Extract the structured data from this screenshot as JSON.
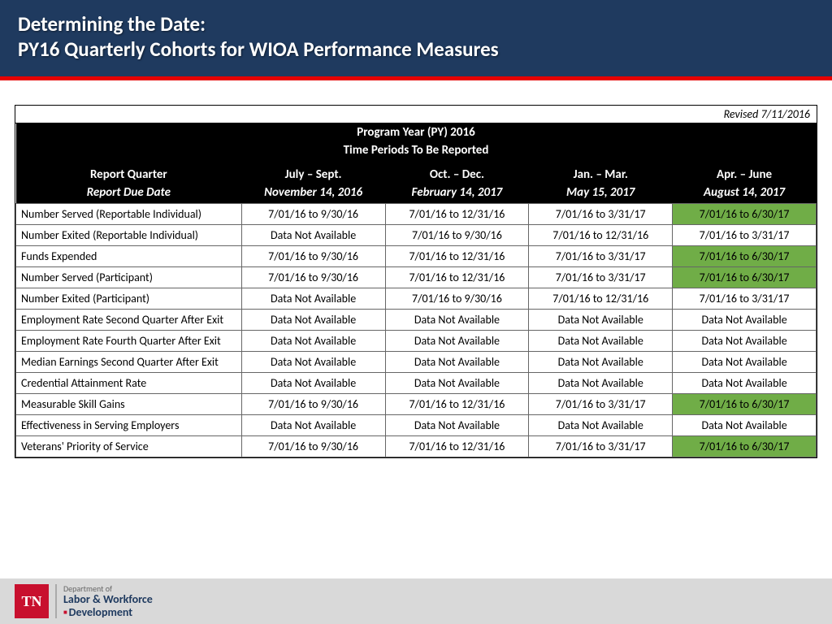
{
  "header": {
    "title1": "Determining the Date:",
    "title2": "PY16 Quarterly Cohorts for WIOA Performance Measures",
    "header_bg": "#1f3a5f",
    "red_bar_color": "#e60000"
  },
  "table": {
    "revised_label": "Revised 7/11/2016",
    "py_title": "Program Year (PY) 2016",
    "py_sub": "Time Periods To Be Reported",
    "col_headers": {
      "metric_label": "Report Quarter",
      "due_label": "Report Due Date",
      "quarters": [
        "July – Sept.",
        "Oct. – Dec.",
        "Jan. – Mar.",
        "Apr. – June"
      ],
      "due_dates": [
        "November 14, 2016",
        "February 14, 2017",
        "May 15, 2017",
        "August 14, 2017"
      ]
    },
    "highlight_color": "#70ad47",
    "rows": [
      {
        "metric": "Number Served (Reportable Individual)",
        "cells": [
          "7/01/16 to 9/30/16",
          "7/01/16 to 12/31/16",
          "7/01/16 to 3/31/17",
          "7/01/16 to 6/30/17"
        ],
        "hl": [
          false,
          false,
          false,
          true
        ]
      },
      {
        "metric": "Number Exited (Reportable Individual)",
        "cells": [
          "Data Not Available",
          "7/01/16 to 9/30/16",
          "7/01/16 to 12/31/16",
          "7/01/16 to 3/31/17"
        ],
        "hl": [
          false,
          false,
          false,
          false
        ]
      },
      {
        "metric": "Funds Expended",
        "cells": [
          "7/01/16 to 9/30/16",
          "7/01/16 to 12/31/16",
          "7/01/16 to 3/31/17",
          "7/01/16 to 6/30/17"
        ],
        "hl": [
          false,
          false,
          false,
          true
        ]
      },
      {
        "metric": "Number Served (Participant)",
        "cells": [
          "7/01/16 to 9/30/16",
          "7/01/16 to 12/31/16",
          "7/01/16 to 3/31/17",
          "7/01/16 to 6/30/17"
        ],
        "hl": [
          false,
          false,
          false,
          true
        ]
      },
      {
        "metric": "Number Exited (Participant)",
        "cells": [
          "Data Not Available",
          "7/01/16 to 9/30/16",
          "7/01/16 to 12/31/16",
          "7/01/16 to 3/31/17"
        ],
        "hl": [
          false,
          false,
          false,
          false
        ]
      },
      {
        "metric": "Employment Rate Second Quarter After Exit",
        "cells": [
          "Data Not Available",
          "Data Not Available",
          "Data Not Available",
          "Data Not Available"
        ],
        "hl": [
          false,
          false,
          false,
          false
        ]
      },
      {
        "metric": "Employment Rate Fourth Quarter After Exit",
        "cells": [
          "Data Not Available",
          "Data Not Available",
          "Data Not Available",
          "Data Not Available"
        ],
        "hl": [
          false,
          false,
          false,
          false
        ]
      },
      {
        "metric": "Median Earnings Second Quarter After Exit",
        "cells": [
          "Data Not Available",
          "Data Not Available",
          "Data Not Available",
          "Data Not Available"
        ],
        "hl": [
          false,
          false,
          false,
          false
        ]
      },
      {
        "metric": "Credential Attainment Rate",
        "cells": [
          "Data Not Available",
          "Data Not Available",
          "Data Not Available",
          "Data Not Available"
        ],
        "hl": [
          false,
          false,
          false,
          false
        ]
      },
      {
        "metric": "Measurable Skill Gains",
        "cells": [
          "7/01/16 to 9/30/16",
          "7/01/16 to 12/31/16",
          "7/01/16 to 3/31/17",
          "7/01/16 to 6/30/17"
        ],
        "hl": [
          false,
          false,
          false,
          true
        ]
      },
      {
        "metric": "Effectiveness in Serving Employers",
        "cells": [
          "Data Not Available",
          "Data Not Available",
          "Data Not Available",
          "Data Not Available"
        ],
        "hl": [
          false,
          false,
          false,
          false
        ]
      },
      {
        "metric": "Veterans' Priority of Service",
        "cells": [
          "7/01/16 to 9/30/16",
          "7/01/16 to 12/31/16",
          "7/01/16 to 3/31/17",
          "7/01/16 to 6/30/17"
        ],
        "hl": [
          false,
          false,
          false,
          true
        ]
      }
    ]
  },
  "footer": {
    "badge": "TN",
    "dept_line1": "Department of",
    "dept_line2": "Labor & Workforce",
    "dept_line3": "Development",
    "footer_bg": "#d9d9d9",
    "badge_bg": "#c8102e"
  }
}
